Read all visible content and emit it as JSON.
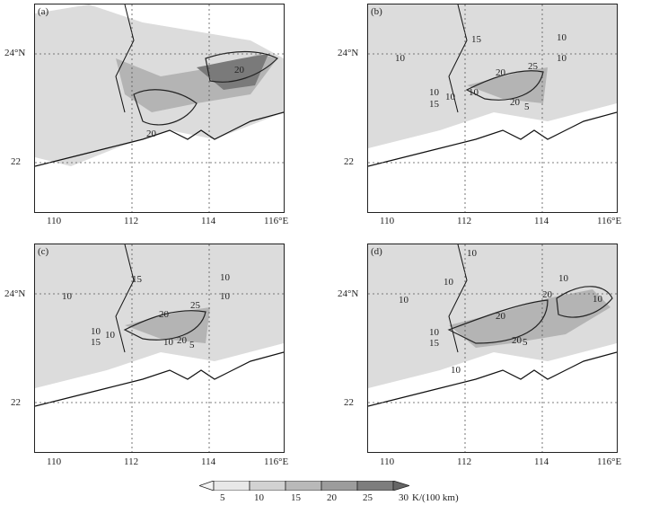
{
  "panels": [
    {
      "label": "(a)",
      "contour_labels": [
        "20",
        "20"
      ]
    },
    {
      "label": "(b)",
      "contour_labels": [
        "15",
        "10",
        "10",
        "10",
        "20",
        "25",
        "10",
        "10",
        "10",
        "15",
        "20",
        "5"
      ]
    },
    {
      "label": "(c)",
      "contour_labels": [
        "15",
        "10",
        "10",
        "10",
        "20",
        "25",
        "10",
        "10",
        "15",
        "10",
        "20",
        "5"
      ]
    },
    {
      "label": "(d)",
      "contour_labels": [
        "10",
        "10",
        "10",
        "20",
        "10",
        "20",
        "10",
        "10",
        "15",
        "20",
        "5",
        "10"
      ]
    }
  ],
  "axes": {
    "x_ticks": [
      "110",
      "112",
      "114",
      "116°E"
    ],
    "y_ticks": [
      "24°N",
      "22"
    ]
  },
  "colorbar": {
    "ticks": [
      "5",
      "10",
      "15",
      "20",
      "25",
      "30"
    ],
    "unit": "K/(100 km)"
  },
  "colors": {
    "coast": "#111111",
    "shade_light": "#dcdcdc",
    "shade_mid": "#b4b4b4",
    "shade_dark": "#7a7a7a",
    "grid": "#555555"
  }
}
